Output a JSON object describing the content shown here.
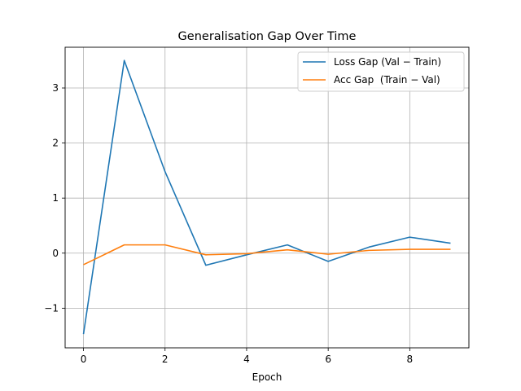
{
  "chart_data": {
    "type": "line",
    "title": "Generalisation Gap Over Time",
    "xlabel": "Epoch",
    "ylabel": "",
    "xlim": [
      -0.45,
      9.45
    ],
    "ylim": [
      -1.72,
      3.74
    ],
    "x_ticks": [
      0,
      2,
      4,
      6,
      8
    ],
    "x_tick_labels": [
      "0",
      "2",
      "4",
      "6",
      "8"
    ],
    "y_ticks": [
      -1,
      0,
      1,
      2,
      3
    ],
    "y_tick_labels": [
      "−1",
      "0",
      "1",
      "2",
      "3"
    ],
    "grid": true,
    "legend_position": "top-right",
    "x": [
      0,
      1,
      2,
      3,
      4,
      5,
      6,
      7,
      8,
      9
    ],
    "series": [
      {
        "name": "Loss Gap (Val − Train)",
        "color": "#1f77b4",
        "values": [
          -1.47,
          3.5,
          1.48,
          -0.22,
          -0.03,
          0.15,
          -0.15,
          0.11,
          0.29,
          0.18
        ]
      },
      {
        "name": "Acc Gap  (Train − Val)",
        "color": "#ff7f0e",
        "values": [
          -0.21,
          0.15,
          0.15,
          -0.03,
          -0.01,
          0.06,
          -0.02,
          0.05,
          0.07,
          0.07
        ]
      }
    ]
  }
}
